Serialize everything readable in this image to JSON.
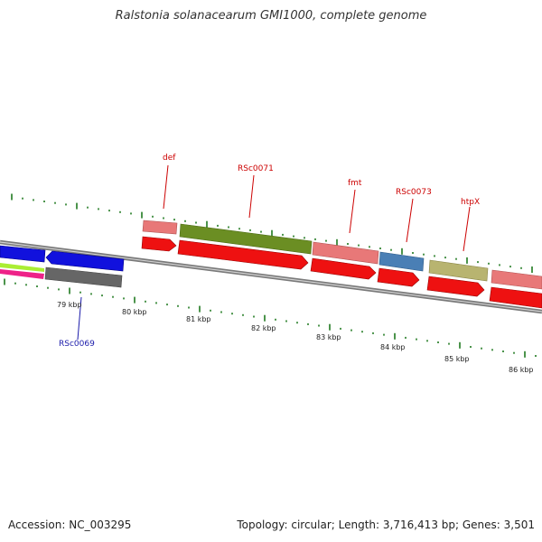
{
  "header": {
    "title": "Ralstonia solanacearum GMI1000, complete genome"
  },
  "footer": {
    "accession": "Accession: NC_003295",
    "summary": "Topology: circular; Length: 3,716,413 bp; Genes: 3,501"
  },
  "colors": {
    "tick": "#1f7a1f",
    "backbone": "#8a8a8a",
    "cds": "#ee1111",
    "label_red": "#cc0000",
    "label_blue": "#1a1aaa"
  },
  "scale_labels": [
    "79 kbp",
    "80 kbp",
    "81 kbp",
    "82 kbp",
    "83 kbp",
    "84 kbp",
    "85 kbp",
    "86 kbp"
  ],
  "gene_labels": [
    {
      "name": "def",
      "color": "red"
    },
    {
      "name": "RSc0071",
      "color": "red"
    },
    {
      "name": "fmt",
      "color": "red"
    },
    {
      "name": "RSc0073",
      "color": "red"
    },
    {
      "name": "htpX",
      "color": "red"
    },
    {
      "name": "RSc0069",
      "color": "blue"
    }
  ],
  "features": [
    {
      "kind": "gene",
      "color": "#e87878",
      "strand": "+"
    },
    {
      "kind": "gene",
      "color": "#6b8e23",
      "strand": "+"
    },
    {
      "kind": "gene",
      "color": "#e87878",
      "strand": "+"
    },
    {
      "kind": "gene",
      "color": "#4a7fb5",
      "strand": "+"
    },
    {
      "kind": "gene",
      "color": "#b8b470",
      "strand": "+"
    },
    {
      "kind": "gene",
      "color": "#e87878",
      "strand": "+"
    },
    {
      "kind": "gene",
      "color": "#1111dd",
      "strand": "-"
    },
    {
      "kind": "gene",
      "color": "#777777",
      "strand": "-"
    }
  ]
}
